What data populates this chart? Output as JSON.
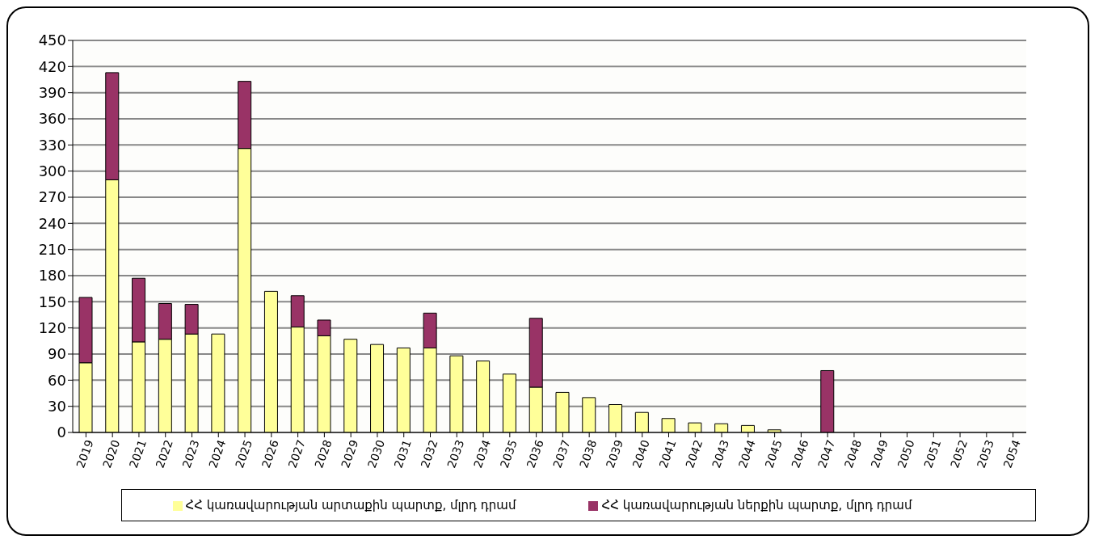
{
  "chart_data": {
    "type": "bar",
    "stacked": true,
    "categories": [
      "2019",
      "2020",
      "2021",
      "2022",
      "2023",
      "2024",
      "2025",
      "2026",
      "2027",
      "2028",
      "2029",
      "2030",
      "2031",
      "2032",
      "2033",
      "2034",
      "2035",
      "2036",
      "2037",
      "2038",
      "2039",
      "2040",
      "2041",
      "2042",
      "2043",
      "2044",
      "2045",
      "2046",
      "2047",
      "2048",
      "2049",
      "2050",
      "2051",
      "2052",
      "2053",
      "2054"
    ],
    "series": [
      {
        "name": "ՀՀ կառավարության արտաքին պարտք, մլրդ դրամ",
        "color": "#ffff99",
        "values": [
          80,
          290,
          104,
          107,
          113,
          113,
          326,
          162,
          121,
          111,
          107,
          101,
          97,
          97,
          88,
          82,
          67,
          52,
          46,
          40,
          32,
          23,
          16,
          11,
          10,
          8,
          3,
          0,
          0,
          0,
          0,
          0,
          0,
          0,
          0,
          0
        ]
      },
      {
        "name": "ՀՀ կառավարության ներքին պարտք, մլրդ դրամ",
        "color": "#993366",
        "values": [
          75,
          123,
          73,
          41,
          34,
          0,
          77,
          0,
          36,
          18,
          0,
          0,
          0,
          40,
          0,
          0,
          0,
          79,
          0,
          0,
          0,
          0,
          0,
          0,
          0,
          0,
          0,
          0,
          71,
          0,
          0,
          0,
          0,
          0,
          0,
          0
        ]
      }
    ],
    "ylim": [
      0,
      450
    ],
    "yticks": [
      0,
      30,
      60,
      90,
      120,
      150,
      180,
      210,
      240,
      270,
      300,
      330,
      360,
      390,
      420,
      450
    ],
    "grid": "y",
    "legend": "bottom"
  }
}
